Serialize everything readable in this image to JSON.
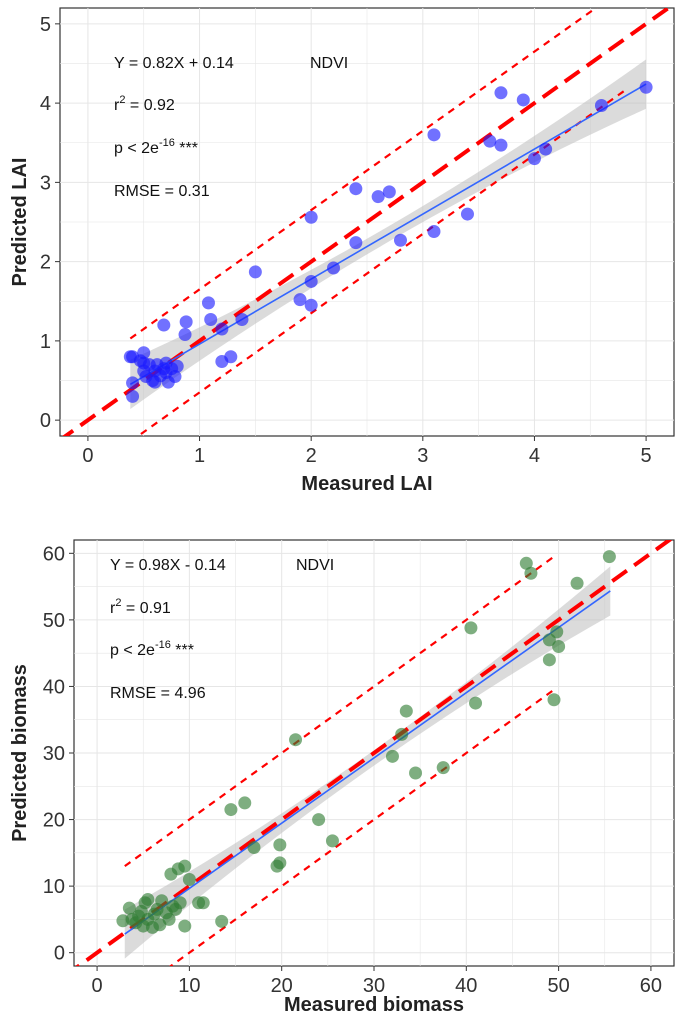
{
  "chart_data": [
    {
      "type": "scatter",
      "xlabel": "Measured LAI",
      "ylabel": "Predicted LAI",
      "xlim": [
        -0.25,
        5.25
      ],
      "ylim": [
        -0.2,
        5.2
      ],
      "xticks": [
        0,
        1,
        2,
        3,
        4,
        5
      ],
      "yticks": [
        0,
        1,
        2,
        3,
        4,
        5
      ],
      "grid": true,
      "point_color": "#1a1aff",
      "annotations": {
        "equation": "Y = 0.82X + 0.14",
        "index": "NDVI",
        "r2_prefix": "r",
        "r2_sup": "2",
        "r2_value": " = 0.92",
        "p_prefix": "p < 2e",
        "p_sup": "-16",
        "p_suffix": " ***",
        "rmse": "RMSE = 0.31"
      },
      "fit": {
        "slope": 0.82,
        "intercept": 0.14,
        "x_range": [
          0.38,
          5.0
        ],
        "color": "#3366ff"
      },
      "one_to_one": {
        "color": "#ff0000"
      },
      "bounds": {
        "offset": 0.65,
        "x_range": [
          0.38,
          4.8
        ],
        "color": "#ff0000"
      },
      "points": [
        [
          0.38,
          0.8
        ],
        [
          0.4,
          0.8
        ],
        [
          0.4,
          0.47
        ],
        [
          0.4,
          0.3
        ],
        [
          0.47,
          0.75
        ],
        [
          0.5,
          0.85
        ],
        [
          0.5,
          0.72
        ],
        [
          0.5,
          0.62
        ],
        [
          0.52,
          0.55
        ],
        [
          0.55,
          0.7
        ],
        [
          0.58,
          0.5
        ],
        [
          0.6,
          0.62
        ],
        [
          0.6,
          0.48
        ],
        [
          0.62,
          0.7
        ],
        [
          0.65,
          0.56
        ],
        [
          0.68,
          0.65
        ],
        [
          0.7,
          0.72
        ],
        [
          0.7,
          0.6
        ],
        [
          0.72,
          0.48
        ],
        [
          0.75,
          0.65
        ],
        [
          0.78,
          0.55
        ],
        [
          0.8,
          0.68
        ],
        [
          0.68,
          1.2
        ],
        [
          0.87,
          1.08
        ],
        [
          0.88,
          1.24
        ],
        [
          1.08,
          1.48
        ],
        [
          1.1,
          1.27
        ],
        [
          1.2,
          1.15
        ],
        [
          1.2,
          0.74
        ],
        [
          1.28,
          0.8
        ],
        [
          1.38,
          1.27
        ],
        [
          1.5,
          1.87
        ],
        [
          1.9,
          1.52
        ],
        [
          2.0,
          1.75
        ],
        [
          2.0,
          1.45
        ],
        [
          2.0,
          2.56
        ],
        [
          2.2,
          1.92
        ],
        [
          2.4,
          2.92
        ],
        [
          2.4,
          2.24
        ],
        [
          2.6,
          2.82
        ],
        [
          2.7,
          2.88
        ],
        [
          2.8,
          2.27
        ],
        [
          3.1,
          3.6
        ],
        [
          3.1,
          2.38
        ],
        [
          3.4,
          2.6
        ],
        [
          3.6,
          3.52
        ],
        [
          3.7,
          4.13
        ],
        [
          3.7,
          3.47
        ],
        [
          3.9,
          4.04
        ],
        [
          4.0,
          3.3
        ],
        [
          4.1,
          3.42
        ],
        [
          4.6,
          3.97
        ],
        [
          5.0,
          4.2
        ]
      ]
    },
    {
      "type": "scatter",
      "xlabel": "Measured biomass",
      "ylabel": "Predicted biomass",
      "xlim": [
        -2.5,
        62.5
      ],
      "ylim": [
        -2,
        62
      ],
      "xticks": [
        0,
        10,
        20,
        30,
        40,
        50,
        60
      ],
      "yticks": [
        0,
        10,
        20,
        30,
        40,
        50,
        60
      ],
      "grid": true,
      "point_color": "#2e7d32",
      "annotations": {
        "equation": "Y = 0.98X - 0.14",
        "index": "NDVI",
        "r2_prefix": "r",
        "r2_sup": "2",
        "r2_value": " = 0.91",
        "p_prefix": "p < 2e",
        "p_sup": "-16",
        "p_suffix": " ***",
        "rmse": "RMSE = 4.96"
      },
      "fit": {
        "slope": 0.98,
        "intercept": -0.14,
        "x_range": [
          3.0,
          55.6
        ],
        "color": "#3366ff"
      },
      "one_to_one": {
        "color": "#ff0000"
      },
      "bounds": {
        "offset": 10.0,
        "x_range": [
          3.0,
          49.5
        ],
        "color": "#ff0000"
      },
      "points": [
        [
          2.8,
          4.8
        ],
        [
          3.5,
          6.7
        ],
        [
          3.8,
          5.0
        ],
        [
          4.2,
          4.5
        ],
        [
          4.5,
          5.5
        ],
        [
          4.8,
          6.2
        ],
        [
          5.0,
          4.0
        ],
        [
          5.2,
          7.5
        ],
        [
          5.5,
          8.0
        ],
        [
          5.5,
          5.0
        ],
        [
          6.0,
          3.8
        ],
        [
          6.2,
          5.8
        ],
        [
          6.5,
          6.5
        ],
        [
          6.8,
          4.2
        ],
        [
          7.0,
          7.8
        ],
        [
          7.5,
          6.0
        ],
        [
          7.8,
          5.0
        ],
        [
          8.0,
          11.8
        ],
        [
          8.2,
          7.0
        ],
        [
          8.5,
          6.5
        ],
        [
          8.8,
          12.6
        ],
        [
          9.0,
          7.5
        ],
        [
          9.5,
          13.0
        ],
        [
          9.5,
          4.0
        ],
        [
          10.0,
          11.0
        ],
        [
          11.0,
          7.5
        ],
        [
          11.5,
          7.5
        ],
        [
          13.5,
          4.7
        ],
        [
          14.5,
          21.5
        ],
        [
          16.0,
          22.5
        ],
        [
          17.0,
          15.8
        ],
        [
          19.5,
          13.0
        ],
        [
          19.8,
          13.5
        ],
        [
          19.8,
          16.2
        ],
        [
          21.5,
          32.0
        ],
        [
          24.0,
          20.0
        ],
        [
          25.5,
          16.8
        ],
        [
          32.0,
          29.5
        ],
        [
          33.0,
          32.8
        ],
        [
          33.5,
          36.3
        ],
        [
          34.5,
          27.0
        ],
        [
          37.5,
          27.8
        ],
        [
          40.5,
          48.8
        ],
        [
          41.0,
          37.5
        ],
        [
          46.5,
          58.5
        ],
        [
          47.0,
          57.0
        ],
        [
          49.0,
          47.0
        ],
        [
          49.0,
          44.0
        ],
        [
          49.5,
          38.0
        ],
        [
          49.8,
          48.2
        ],
        [
          50.0,
          46.0
        ],
        [
          52.0,
          55.5
        ],
        [
          55.5,
          59.5
        ]
      ]
    }
  ]
}
